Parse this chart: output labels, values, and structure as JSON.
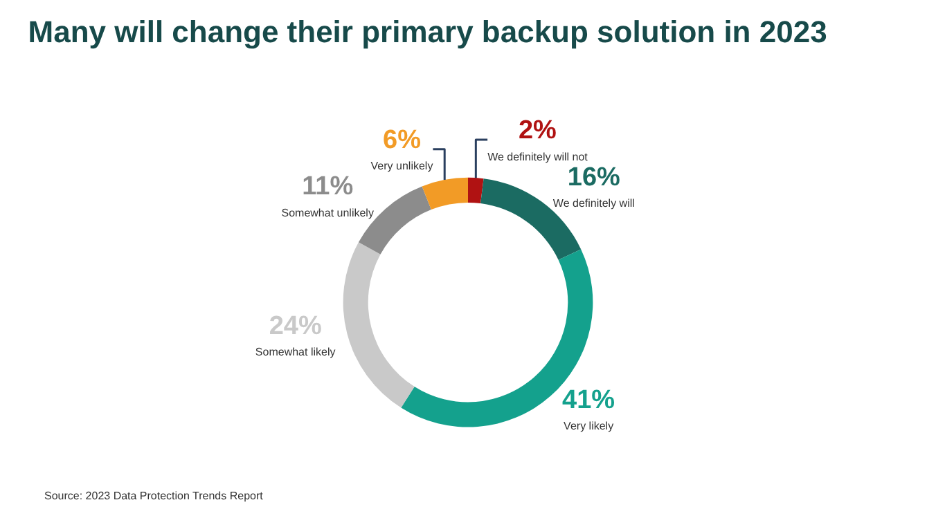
{
  "chart_data": {
    "type": "donut",
    "title": "Many will change their primary backup solution in 2023",
    "categories": [
      "We definitely will not",
      "We definitely will",
      "Very likely",
      "Somewhat likely",
      "Somewhat unlikely",
      "Very unlikely"
    ],
    "values": [
      2,
      16,
      41,
      24,
      11,
      6
    ],
    "value_labels": [
      "2%",
      "16%",
      "41%",
      "24%",
      "11%",
      "6%"
    ],
    "colors": [
      "#b01212",
      "#1b6b62",
      "#14a18d",
      "#c9c9c9",
      "#8c8c8c",
      "#f29b26"
    ],
    "annotations": [
      "Source: 2023 Data Protection Trends Report"
    ],
    "legend": false
  }
}
